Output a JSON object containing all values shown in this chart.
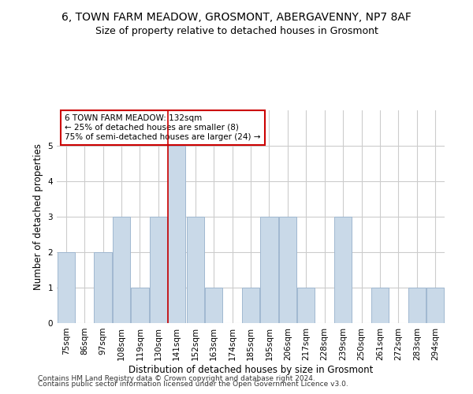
{
  "title": "6, TOWN FARM MEADOW, GROSMONT, ABERGAVENNY, NP7 8AF",
  "subtitle": "Size of property relative to detached houses in Grosmont",
  "xlabel": "Distribution of detached houses by size in Grosmont",
  "ylabel": "Number of detached properties",
  "categories": [
    "75sqm",
    "86sqm",
    "97sqm",
    "108sqm",
    "119sqm",
    "130sqm",
    "141sqm",
    "152sqm",
    "163sqm",
    "174sqm",
    "185sqm",
    "195sqm",
    "206sqm",
    "217sqm",
    "228sqm",
    "239sqm",
    "250sqm",
    "261sqm",
    "272sqm",
    "283sqm",
    "294sqm"
  ],
  "values": [
    2,
    0,
    2,
    3,
    1,
    3,
    5,
    3,
    1,
    0,
    1,
    3,
    3,
    1,
    0,
    3,
    0,
    1,
    0,
    1,
    1
  ],
  "bar_color": "#c9d9e8",
  "bar_edge_color": "#a0b8d0",
  "vline_x": 5.5,
  "vline_color": "#cc0000",
  "annotation_line1": "6 TOWN FARM MEADOW: 132sqm",
  "annotation_line2": "← 25% of detached houses are smaller (8)",
  "annotation_line3": "75% of semi-detached houses are larger (24) →",
  "annotation_box_color": "#ffffff",
  "annotation_box_edge": "#cc0000",
  "ylim": [
    0,
    6
  ],
  "yticks": [
    0,
    1,
    2,
    3,
    4,
    5
  ],
  "background_color": "#ffffff",
  "grid_color": "#cccccc",
  "footer_line1": "Contains HM Land Registry data © Crown copyright and database right 2024.",
  "footer_line2": "Contains public sector information licensed under the Open Government Licence v3.0.",
  "title_fontsize": 10,
  "subtitle_fontsize": 9,
  "xlabel_fontsize": 8.5,
  "ylabel_fontsize": 8.5,
  "tick_fontsize": 7.5,
  "footer_fontsize": 6.5,
  "annotation_fontsize": 7.5
}
